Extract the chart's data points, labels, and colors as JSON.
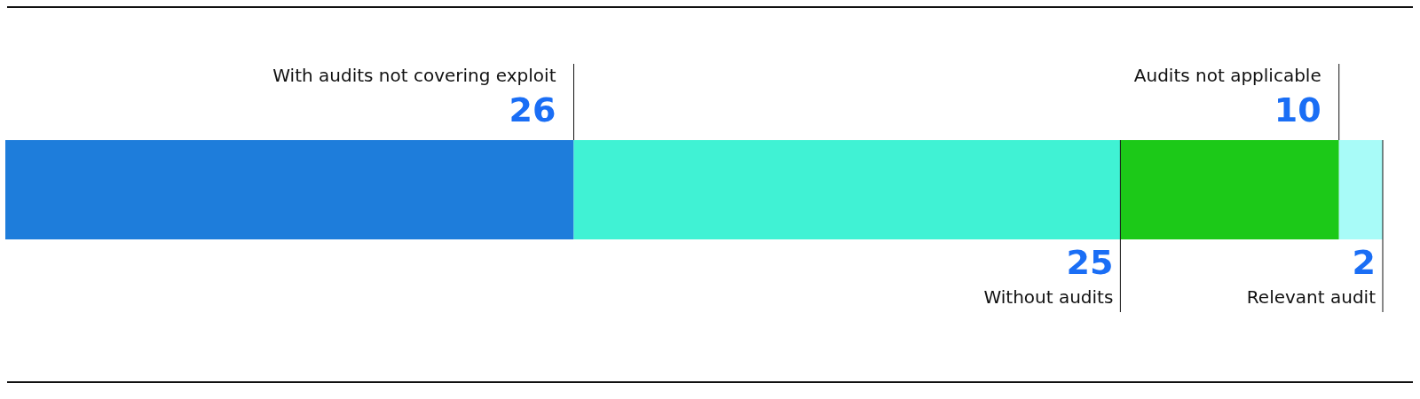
{
  "chart_data": {
    "type": "bar",
    "orientation": "horizontal",
    "stacked": true,
    "data_labels": true,
    "categories": [
      null
    ],
    "xlim": [
      0,
      63
    ],
    "series": [
      {
        "name": "With audits not covering exploit",
        "color": "#1e7ddb",
        "values": [
          26
        ]
      },
      {
        "name": "Without audits",
        "color": "#40f2d4",
        "values": [
          25
        ]
      },
      {
        "name": "Audits not applicable",
        "color": "#1cc918",
        "values": [
          10
        ]
      },
      {
        "name": "Relevant audit",
        "color": "#a8fbf8",
        "values": [
          2
        ]
      }
    ]
  }
}
